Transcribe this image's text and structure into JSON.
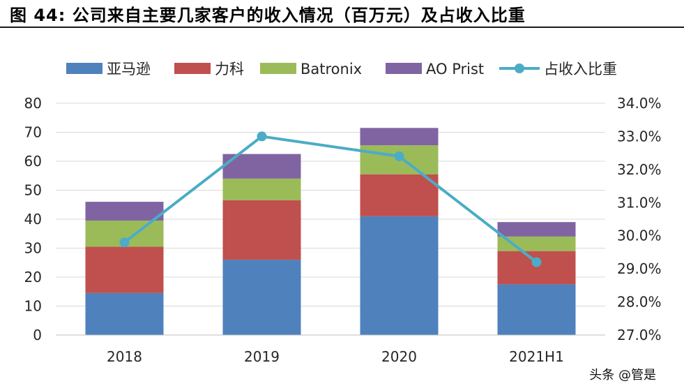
{
  "header": {
    "title": "图 44: 公司来自主要几家客户的收入情况（百万元）及占收入比重"
  },
  "watermark": "头条 @管是",
  "colors": {
    "amazon": "#4F81BD",
    "lifco": "#C0504D",
    "batronix": "#9BBB59",
    "aoprist": "#8064A2",
    "share": "#4BACC6"
  },
  "chart_data": {
    "type": "bar",
    "stacked": true,
    "categories": [
      "2018",
      "2019",
      "2020",
      "2021H1"
    ],
    "series": [
      {
        "name": "亚马逊",
        "values": [
          14.5,
          26,
          41,
          17.5
        ],
        "color": "#4F81BD"
      },
      {
        "name": "力科",
        "values": [
          16,
          20.5,
          14.5,
          11.5
        ],
        "color": "#C0504D"
      },
      {
        "name": "Batronix",
        "values": [
          9,
          7.5,
          10,
          5
        ],
        "color": "#9BBB59"
      },
      {
        "name": "AO Prist",
        "values": [
          6.5,
          8.5,
          6,
          5
        ],
        "color": "#8064A2"
      }
    ],
    "line_series": {
      "name": "占收入比重",
      "values": [
        29.8,
        33.0,
        32.4,
        29.2
      ],
      "axis": "right",
      "color": "#4BACC6"
    },
    "ylim": [
      0,
      80
    ],
    "yticks": [
      "0",
      "10",
      "20",
      "30",
      "40",
      "50",
      "60",
      "70",
      "80"
    ],
    "y2lim": [
      27.0,
      34.0
    ],
    "y2ticks": [
      "27.0%",
      "28.0%",
      "29.0%",
      "30.0%",
      "31.0%",
      "32.0%",
      "33.0%",
      "34.0%"
    ],
    "grid": true,
    "legend": "top"
  }
}
